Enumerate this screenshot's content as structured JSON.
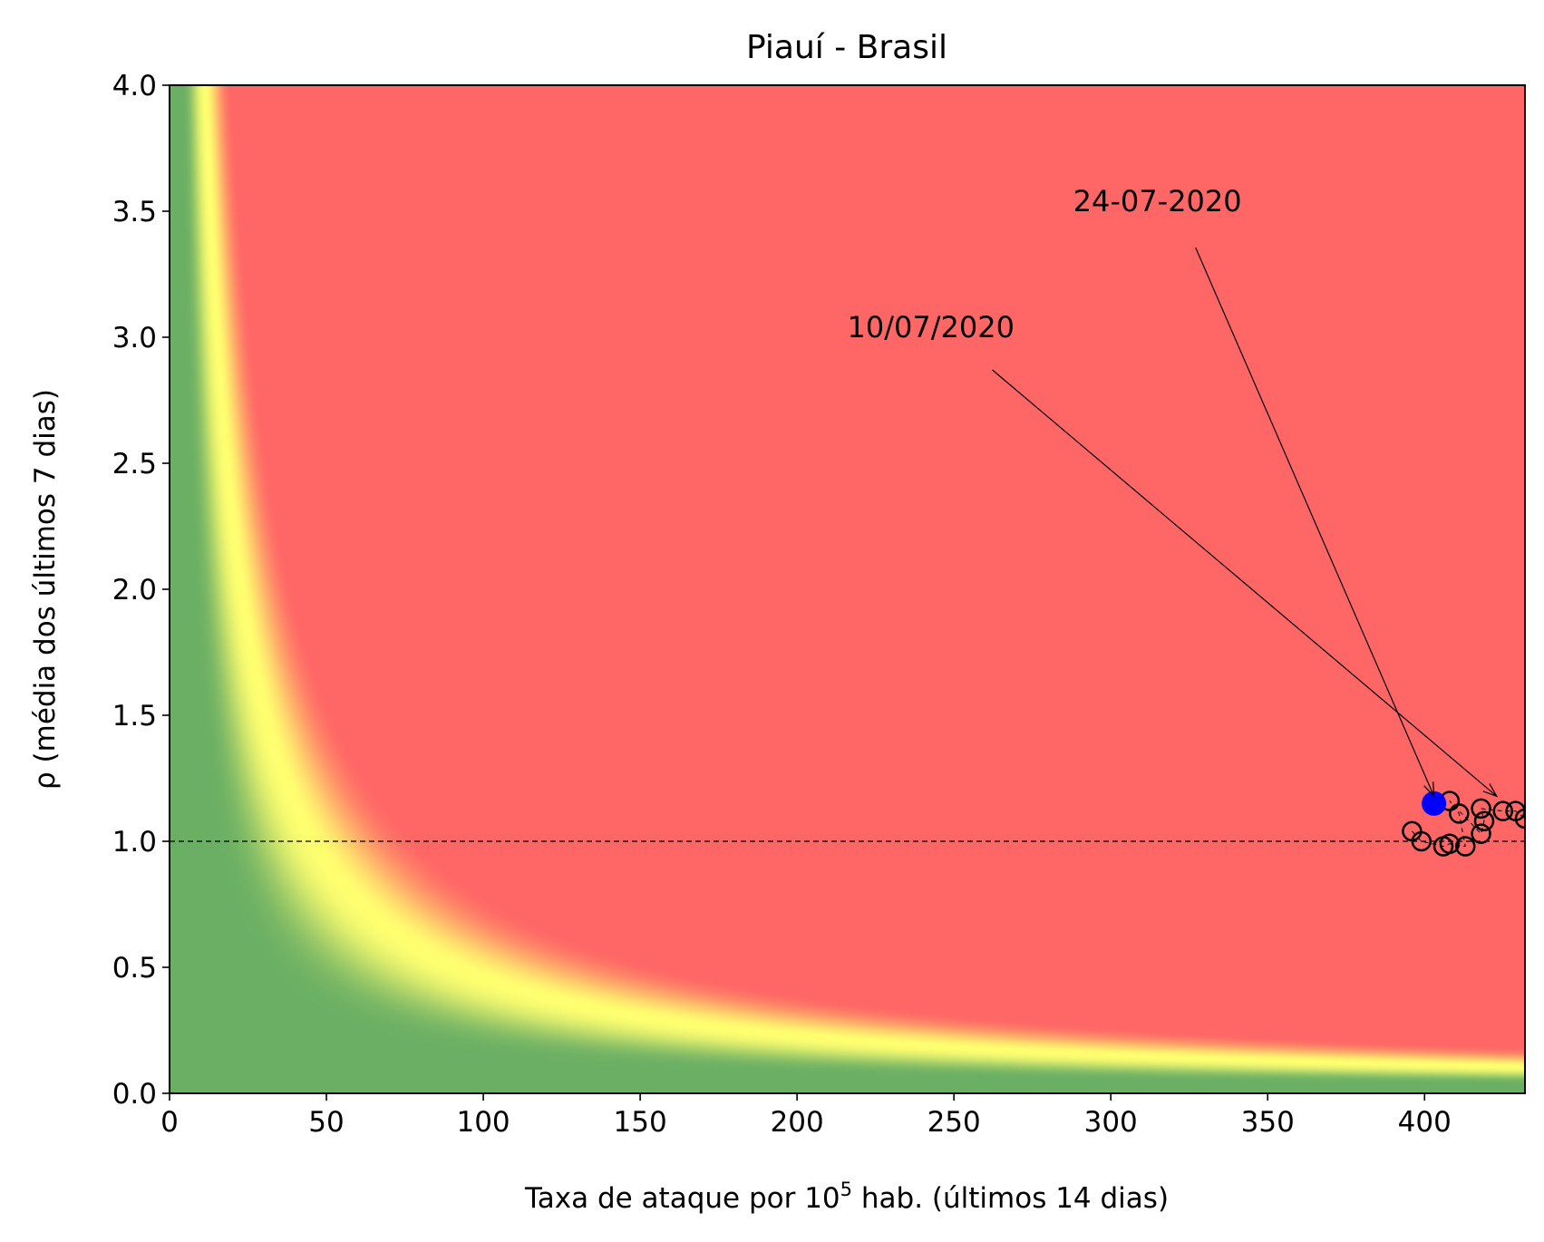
{
  "chart_data": {
    "type": "scatter",
    "title": "Piauí - Brasil",
    "xlabel": {
      "prefix": "Taxa de ataque por 10",
      "superscript": "5",
      "suffix": " hab. (últimos 14 dias)"
    },
    "ylabel": "ρ (média dos últimos 7 dias)",
    "xlim": [
      0,
      432
    ],
    "ylim": [
      0,
      4
    ],
    "xticks": [
      "0",
      "50",
      "100",
      "150",
      "200",
      "250",
      "300",
      "350",
      "400"
    ],
    "yticks": [
      "0.0",
      "0.5",
      "1.0",
      "1.5",
      "2.0",
      "2.5",
      "3.0",
      "3.5",
      "4.0"
    ],
    "grid": false,
    "background": {
      "type": "risk-heatmap",
      "description": "risk level ~ x*y; green low, yellow medium, red high",
      "colors": {
        "low": "#6aaf64",
        "medium": "#ffff70",
        "high": "#ff6666"
      }
    },
    "reference_line": {
      "y": 1.0,
      "style": "dashed",
      "color": "#000000"
    },
    "series": [
      {
        "marker": "open-circle",
        "color": "#000000",
        "points": [
          {
            "x": 396,
            "y": 1.04
          },
          {
            "x": 399,
            "y": 1.0
          },
          {
            "x": 406,
            "y": 0.98
          },
          {
            "x": 408,
            "y": 0.99
          },
          {
            "x": 413,
            "y": 0.98
          },
          {
            "x": 411,
            "y": 1.11
          },
          {
            "x": 408,
            "y": 1.16
          },
          {
            "x": 418,
            "y": 1.03
          },
          {
            "x": 419,
            "y": 1.08
          },
          {
            "x": 418,
            "y": 1.13
          },
          {
            "x": 425,
            "y": 1.12
          },
          {
            "x": 429,
            "y": 1.12
          },
          {
            "x": 432,
            "y": 1.09
          }
        ]
      },
      {
        "marker": "filled-circle",
        "color": "#0000ff",
        "points": [
          {
            "x": 403,
            "y": 1.15
          }
        ]
      }
    ],
    "annotations": [
      {
        "text": "10/07/2020",
        "text_x": 216,
        "text_y": 3.0,
        "arrow_to_x": 423,
        "arrow_to_y": 1.15
      },
      {
        "text": "24-07-2020",
        "text_x": 288,
        "text_y": 3.5,
        "arrow_to_x": 403,
        "arrow_to_y": 1.15
      }
    ]
  }
}
